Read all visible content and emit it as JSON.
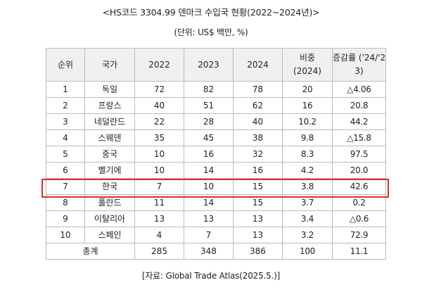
{
  "title": "<HS코드 3304.99 덴마크 수입국 현황(2022~2024년)>",
  "unit": "(단위: US$ 백만, %)",
  "table": {
    "headers": {
      "rank": "순위",
      "country": "국가",
      "y2022": "2022",
      "y2023": "2023",
      "y2024": "2024",
      "share_line1": "비중",
      "share_line2": "(2024)",
      "growth_line1": "증감률 ('24/'2",
      "growth_line2": "3)"
    },
    "rows": [
      {
        "rank": "1",
        "country": "독일",
        "y2022": "72",
        "y2023": "82",
        "y2024": "78",
        "share": "20",
        "growth": "△4.06"
      },
      {
        "rank": "2",
        "country": "프랑스",
        "y2022": "40",
        "y2023": "51",
        "y2024": "62",
        "share": "16",
        "growth": "20.8"
      },
      {
        "rank": "3",
        "country": "네덜란드",
        "y2022": "22",
        "y2023": "28",
        "y2024": "40",
        "share": "10.2",
        "growth": "44.2"
      },
      {
        "rank": "4",
        "country": "스웨덴",
        "y2022": "35",
        "y2023": "45",
        "y2024": "38",
        "share": "9.8",
        "growth": "△15.8"
      },
      {
        "rank": "5",
        "country": "중국",
        "y2022": "10",
        "y2023": "16",
        "y2024": "32",
        "share": "8.3",
        "growth": "97.5"
      },
      {
        "rank": "6",
        "country": "벨기에",
        "y2022": "10",
        "y2023": "14",
        "y2024": "16",
        "share": "4.2",
        "growth": "20.0"
      },
      {
        "rank": "7",
        "country": "한국",
        "y2022": "7",
        "y2023": "10",
        "y2024": "15",
        "share": "3.8",
        "growth": "42.6"
      },
      {
        "rank": "8",
        "country": "폴란드",
        "y2022": "11",
        "y2023": "14",
        "y2024": "15",
        "share": "3.7",
        "growth": "0.2"
      },
      {
        "rank": "9",
        "country": "이탈리아",
        "y2022": "13",
        "y2023": "13",
        "y2024": "13",
        "share": "3.4",
        "growth": "△0.6"
      },
      {
        "rank": "10",
        "country": "스페인",
        "y2022": "4",
        "y2023": "7",
        "y2024": "13",
        "share": "3.2",
        "growth": "72.9"
      }
    ],
    "total": {
      "label": "총계",
      "y2022": "285",
      "y2023": "348",
      "y2024": "386",
      "share": "100",
      "growth": "11.1"
    },
    "highlight": {
      "country": "한국",
      "color": "#e32a2a"
    }
  },
  "source": "[자료: Global Trade Atlas(2025.5.)]"
}
